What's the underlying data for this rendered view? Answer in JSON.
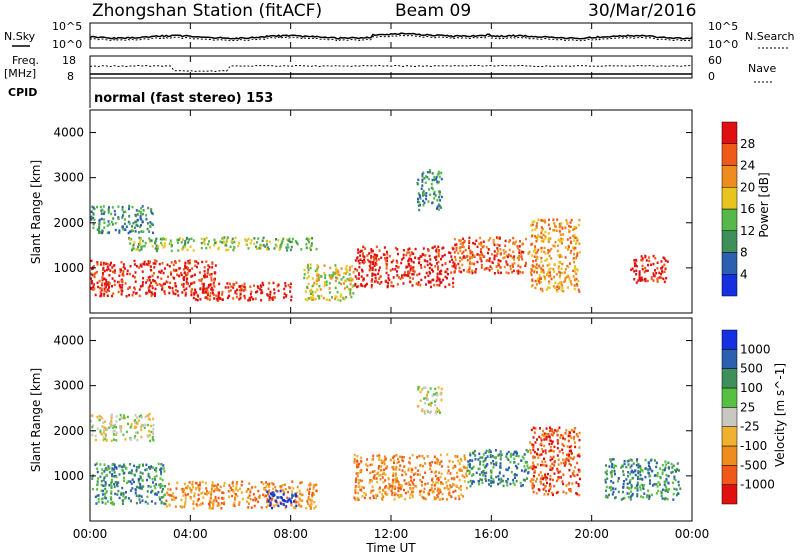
{
  "header": {
    "station": "Zhongshan Station (fitACF)",
    "beam": "Beam 09",
    "date": "30/Mar/2016"
  },
  "noise_panel": {
    "left_label": "N.Sky",
    "right_label": "N.Search",
    "left_ticks": [
      "10^5",
      "10^0"
    ],
    "right_ticks": [
      "10^5",
      "10^0"
    ]
  },
  "freq_panel": {
    "left_label_1": "Freq.",
    "left_label_2": "[MHz]",
    "left_ticks": [
      "18",
      "8"
    ],
    "right_label": "Nave",
    "right_ticks": [
      "60",
      "0"
    ]
  },
  "cpid": {
    "label": "CPID",
    "text": "normal (fast stereo) 153"
  },
  "x_axis": {
    "label": "Time UT",
    "ticks": [
      "00:00",
      "04:00",
      "08:00",
      "12:00",
      "16:00",
      "20:00",
      "00:00"
    ]
  },
  "colors": {
    "power": [
      "#1530e0",
      "#2b5fb0",
      "#3f8f5a",
      "#56b84a",
      "#e8c421",
      "#f08c1e",
      "#f05a18",
      "#e01010"
    ],
    "velocity": [
      "#e01010",
      "#f05a18",
      "#f08c1e",
      "#f0b030",
      "#c8c8c0",
      "#58c040",
      "#3f8f5a",
      "#2b5fb0",
      "#1530e0"
    ]
  },
  "chart_data": [
    {
      "type": "heatmap",
      "title": "",
      "xlabel": "Time UT",
      "ylabel": "Slant Range [km]",
      "y_ticks": [
        "1000",
        "2000",
        "3000",
        "4000"
      ],
      "colorbar": {
        "label": "Power [dB]",
        "ticks": [
          "4",
          "8",
          "12",
          "16",
          "20",
          "24",
          "28"
        ]
      },
      "scatter_regions": [
        {
          "t_start": 0.0,
          "t_end": 5.0,
          "range_low": 400,
          "range_high": 1200,
          "level": 7
        },
        {
          "t_start": 4.0,
          "t_end": 8.0,
          "range_low": 300,
          "range_high": 700,
          "level": 7
        },
        {
          "t_start": 0.0,
          "t_end": 2.5,
          "range_low": 1800,
          "range_high": 2400,
          "level": 2
        },
        {
          "t_start": 1.5,
          "t_end": 9.0,
          "range_low": 1400,
          "range_high": 1700,
          "level": 3
        },
        {
          "t_start": 10.5,
          "t_end": 14.5,
          "range_low": 600,
          "range_high": 1500,
          "level": 7
        },
        {
          "t_start": 14.5,
          "t_end": 17.5,
          "range_low": 900,
          "range_high": 1700,
          "level": 6
        },
        {
          "t_start": 13.0,
          "t_end": 14.0,
          "range_low": 2300,
          "range_high": 3200,
          "level": 2
        },
        {
          "t_start": 17.5,
          "t_end": 19.5,
          "range_low": 500,
          "range_high": 2100,
          "level": 5
        },
        {
          "t_start": 21.5,
          "t_end": 23.0,
          "range_low": 700,
          "range_high": 1300,
          "level": 7
        },
        {
          "t_start": 8.5,
          "t_end": 10.5,
          "range_low": 300,
          "range_high": 1100,
          "level": 4
        }
      ]
    },
    {
      "type": "heatmap",
      "title": "",
      "xlabel": "Time UT",
      "ylabel": "Slant Range [km]",
      "y_ticks": [
        "1000",
        "2000",
        "3000",
        "4000"
      ],
      "colorbar": {
        "label": "Velocity [m s^-1]",
        "ticks": [
          "1000",
          "500",
          "100",
          "25",
          "-25",
          "-100",
          "-500",
          "-1000"
        ]
      },
      "scatter_regions": [
        {
          "t_start": 0.0,
          "t_end": 3.0,
          "range_low": 400,
          "range_high": 1300,
          "level": 6
        },
        {
          "t_start": 3.0,
          "t_end": 9.0,
          "range_low": 300,
          "range_high": 900,
          "level": 2
        },
        {
          "t_start": 7.0,
          "t_end": 8.2,
          "range_low": 300,
          "range_high": 700,
          "level": 8
        },
        {
          "t_start": 0.0,
          "t_end": 2.5,
          "range_low": 1800,
          "range_high": 2400,
          "level": 4
        },
        {
          "t_start": 10.5,
          "t_end": 15.0,
          "range_low": 500,
          "range_high": 1500,
          "level": 2
        },
        {
          "t_start": 15.0,
          "t_end": 17.5,
          "range_low": 800,
          "range_high": 1600,
          "level": 6
        },
        {
          "t_start": 13.0,
          "t_end": 14.0,
          "range_low": 2400,
          "range_high": 3000,
          "level": 4
        },
        {
          "t_start": 17.5,
          "t_end": 19.5,
          "range_low": 600,
          "range_high": 2100,
          "level": 1
        },
        {
          "t_start": 20.5,
          "t_end": 23.5,
          "range_low": 500,
          "range_high": 1400,
          "level": 6
        }
      ]
    }
  ]
}
